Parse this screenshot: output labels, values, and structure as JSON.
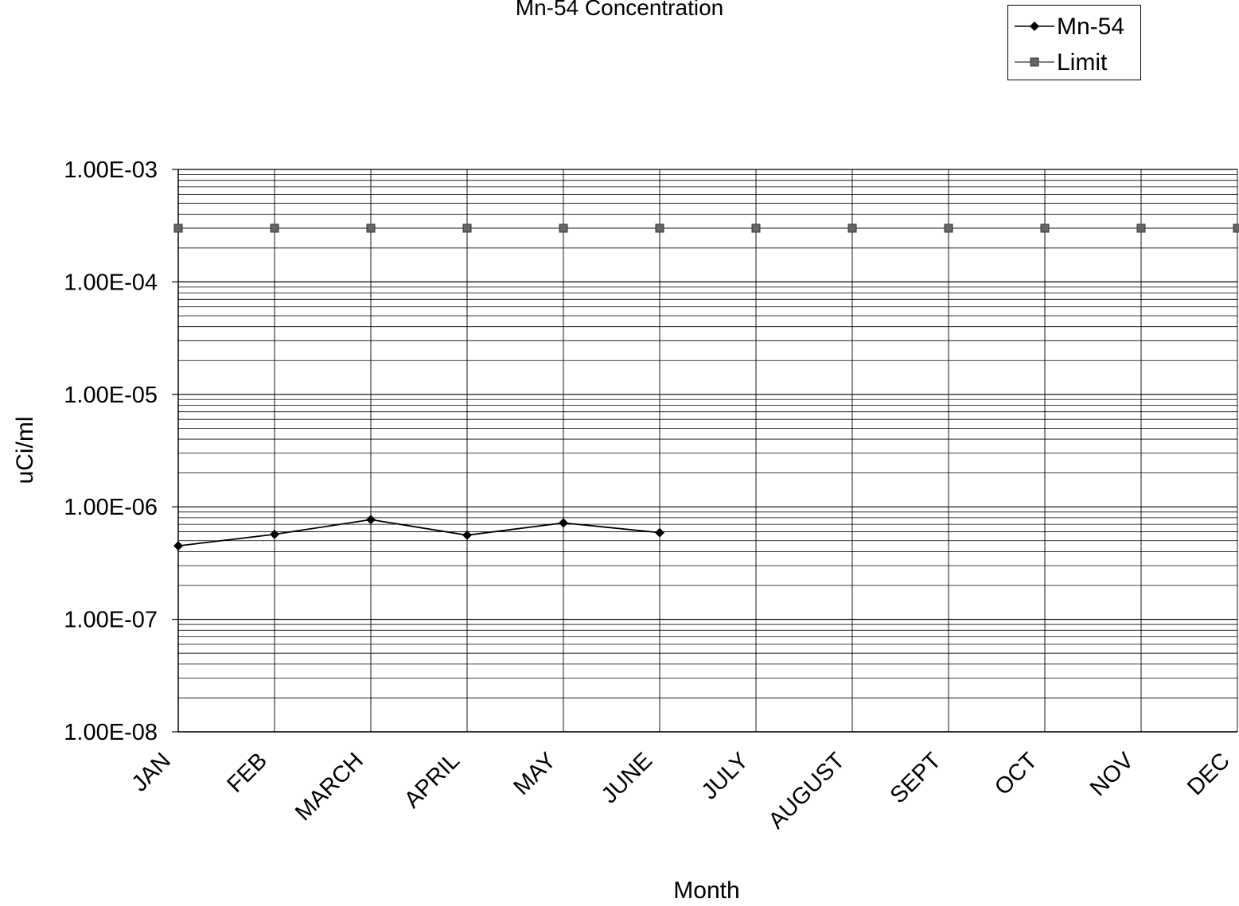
{
  "chart_data": {
    "type": "line",
    "title": "Mn-54 Concentration",
    "xlabel": "Month",
    "ylabel": "uCi/ml",
    "categories": [
      "JAN",
      "FEB",
      "MARCH",
      "APRIL",
      "MAY",
      "JUNE",
      "JULY",
      "AUGUST",
      "SEPT",
      "OCT",
      "NOV",
      "DEC"
    ],
    "yscale": "log",
    "ylim": [
      1e-08,
      0.001
    ],
    "ytick_labels": [
      "1.00E-08",
      "1.00E-07",
      "1.00E-06",
      "1.00E-05",
      "1.00E-04",
      "1.00E-03"
    ],
    "grid": true,
    "legend_position": "top-right",
    "series": [
      {
        "name": "Mn-54",
        "marker": "diamond",
        "color": "#000000",
        "values": [
          4.5e-07,
          5.7e-07,
          7.7e-07,
          5.6e-07,
          7.2e-07,
          5.9e-07,
          null,
          null,
          null,
          null,
          null,
          null
        ]
      },
      {
        "name": "Limit",
        "marker": "square",
        "color": "#555555",
        "values": [
          0.0003,
          0.0003,
          0.0003,
          0.0003,
          0.0003,
          0.0003,
          0.0003,
          0.0003,
          0.0003,
          0.0003,
          0.0003,
          0.0003
        ]
      }
    ]
  }
}
